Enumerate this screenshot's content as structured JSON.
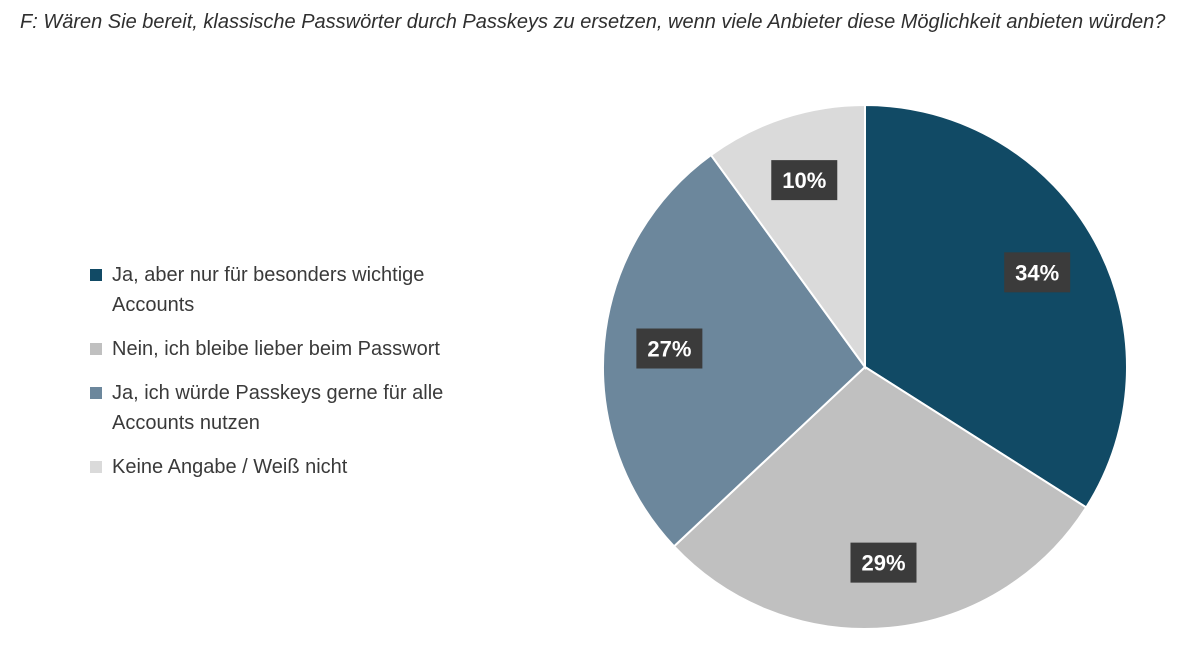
{
  "question": "F: Wären Sie bereit, klassische Passwörter durch Passkeys zu ersetzen, wenn viele Anbieter diese Möglichkeit anbieten würden?",
  "chart_data": {
    "type": "pie",
    "title": "F: Wären Sie bereit, klassische Passwörter durch Passkeys zu ersetzen, wenn viele Anbieter diese Möglichkeit anbieten würden?",
    "legend_position": "left",
    "slices": [
      {
        "label": "Ja, aber nur für besonders wichtige Accounts",
        "value": 34,
        "display": "34%",
        "color": "#114a65"
      },
      {
        "label": "Nein, ich bleibe lieber beim Passwort",
        "value": 29,
        "display": "29%",
        "color": "#c0c0c0"
      },
      {
        "label": "Ja, ich würde Passkeys gerne für alle Accounts nutzen",
        "value": 27,
        "display": "27%",
        "color": "#6c879c"
      },
      {
        "label": "Keine Angabe / Weiß nicht",
        "value": 10,
        "display": "10%",
        "color": "#dadada"
      }
    ]
  }
}
